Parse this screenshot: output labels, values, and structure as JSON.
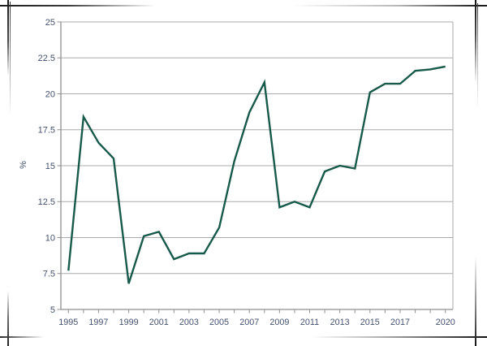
{
  "chart_data": {
    "type": "line",
    "title": "",
    "xlabel": "",
    "ylabel": "%",
    "x": [
      1995,
      1996,
      1997,
      1998,
      1999,
      2000,
      2001,
      2002,
      2003,
      2004,
      2005,
      2006,
      2007,
      2008,
      2009,
      2010,
      2011,
      2012,
      2013,
      2014,
      2015,
      2016,
      2017,
      2018,
      2019,
      2020
    ],
    "values": [
      7.7,
      18.4,
      16.6,
      15.5,
      6.8,
      10.1,
      10.4,
      8.5,
      8.9,
      8.9,
      10.7,
      15.3,
      18.7,
      20.8,
      12.1,
      12.5,
      12.1,
      14.6,
      15.0,
      14.8,
      20.1,
      20.7,
      20.7,
      21.6,
      21.7,
      21.9
    ],
    "ylim": [
      5,
      25
    ],
    "y_tick_values": [
      25,
      22.5,
      20,
      17.5,
      15,
      12.5,
      10,
      7.5,
      5
    ],
    "y_tick_labels": [
      "25",
      "22.5",
      "20",
      "17.5",
      "15",
      "12.5",
      "10",
      "7.5",
      "5"
    ],
    "x_tick_years": [
      1995,
      1997,
      1999,
      2001,
      2003,
      2005,
      2007,
      2009,
      2011,
      2013,
      2015,
      2017,
      2020
    ],
    "x_tick_labels": [
      "1995",
      "1997",
      "1999",
      "2001",
      "2003",
      "2005",
      "2007",
      "2009",
      "2011",
      "2013",
      "2015",
      "2017",
      "2020"
    ],
    "grid": true,
    "legend": false,
    "line_color": "#17594A",
    "grid_color": "#ABABAB",
    "axis_color": "#8F8F8F",
    "label_color": "#44516F"
  }
}
